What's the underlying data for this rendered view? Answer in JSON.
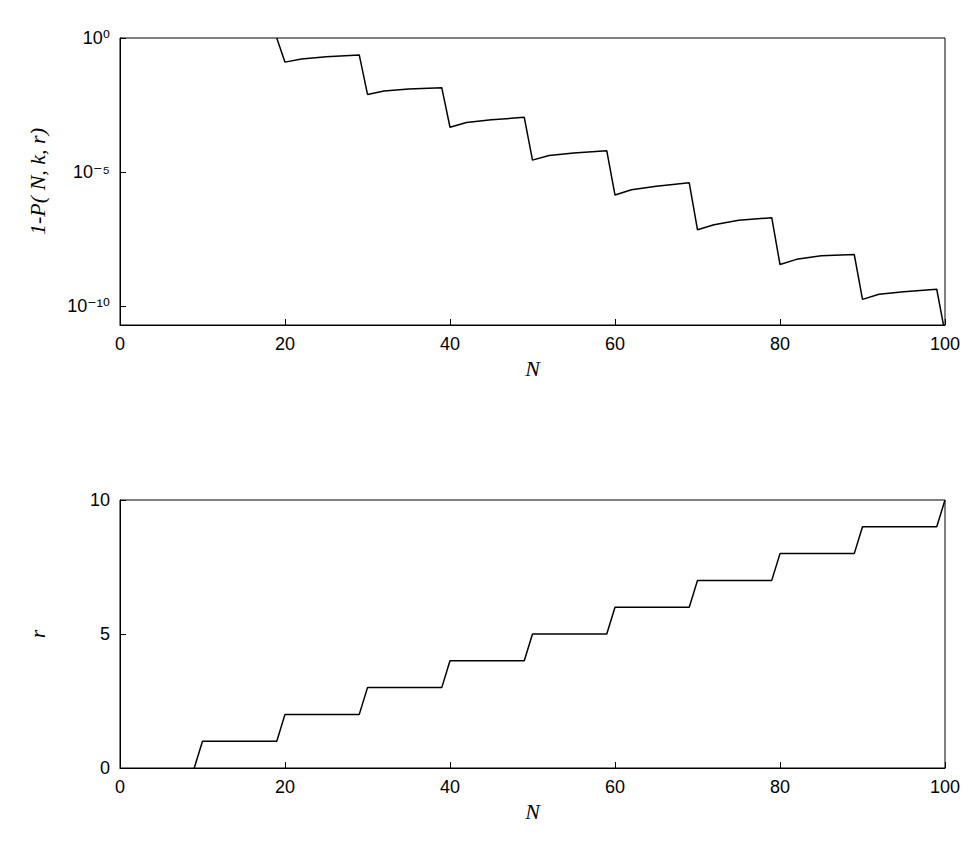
{
  "chart_data": [
    {
      "type": "line",
      "x_label": "N",
      "y_label": "1-P( N, k, r)",
      "x": [
        19,
        20,
        22,
        25,
        29,
        30,
        32,
        35,
        39,
        40,
        42,
        45,
        49,
        50,
        52,
        55,
        59,
        60,
        62,
        65,
        69,
        70,
        72,
        75,
        79,
        80,
        82,
        85,
        89,
        90,
        92,
        95,
        99,
        100
      ],
      "values": [
        1,
        0.126,
        0.166,
        0.2,
        0.234,
        0.0079,
        0.0105,
        0.0126,
        0.0141,
        0.00047,
        0.00071,
        0.00089,
        0.0011,
        2.8e-05,
        4.2e-05,
        5.2e-05,
        6.3e-05,
        1.4e-06,
        2.2e-06,
        3e-06,
        4e-06,
        7.1e-08,
        1.1e-07,
        1.6e-07,
        2e-07,
        3.6e-09,
        5.6e-09,
        7.6e-09,
        8.5e-09,
        1.8e-10,
        2.8e-10,
        3.5e-10,
        4.3e-10,
        1e-11
      ],
      "color": "#000000",
      "xlim": [
        0,
        100
      ],
      "xticks": [
        0,
        20,
        40,
        60,
        80,
        100
      ],
      "log": "y",
      "ylim": [
        2e-11,
        1
      ],
      "yticks": [
        {
          "value": 1,
          "label": "10⁰"
        },
        {
          "value": 1e-05,
          "label": "10⁻⁵"
        },
        {
          "value": 1e-10,
          "label": "10⁻¹⁰"
        }
      ],
      "grid": false
    },
    {
      "type": "line",
      "x_label": "N",
      "y_label": "r",
      "x": [
        9,
        10,
        19,
        20,
        29,
        30,
        39,
        40,
        49,
        50,
        59,
        60,
        69,
        70,
        79,
        80,
        89,
        90,
        99,
        100
      ],
      "values": [
        0,
        1,
        1,
        2,
        2,
        3,
        3,
        4,
        4,
        5,
        5,
        6,
        6,
        7,
        7,
        8,
        8,
        9,
        9,
        10
      ],
      "color": "#000000",
      "xlim": [
        0,
        100
      ],
      "xticks": [
        0,
        20,
        40,
        60,
        80,
        100
      ],
      "ylim": [
        0,
        10
      ],
      "yticks": [
        0,
        5,
        10
      ],
      "grid": false
    }
  ]
}
